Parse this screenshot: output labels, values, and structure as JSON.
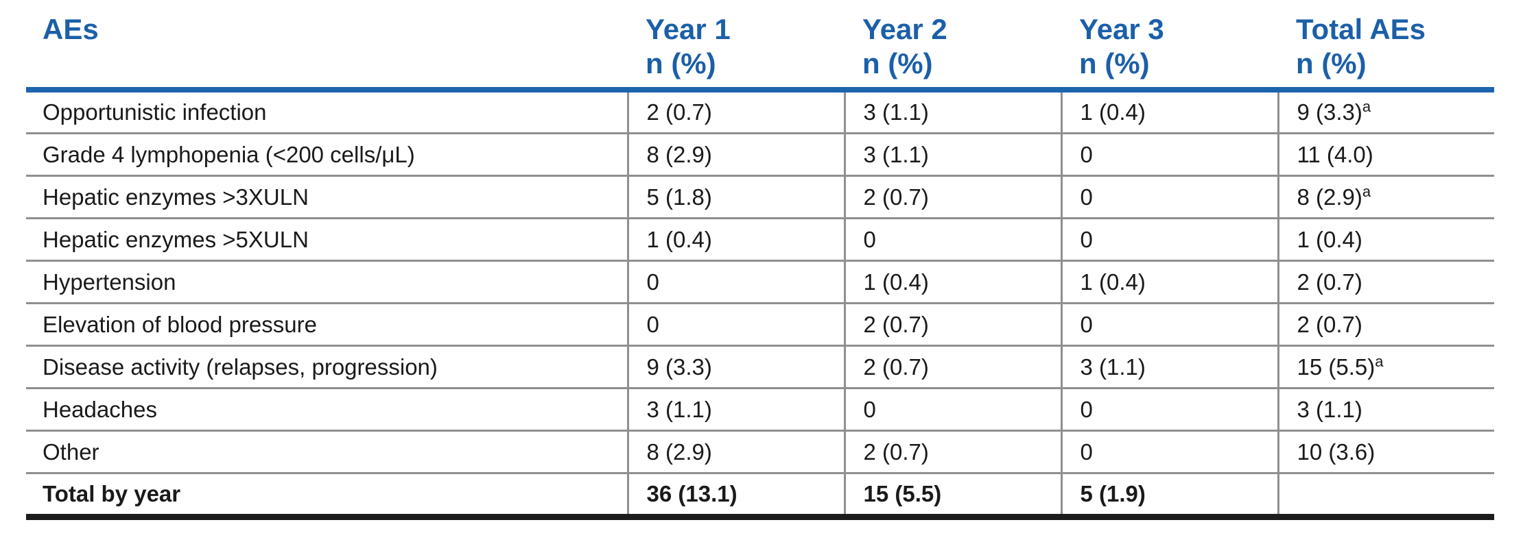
{
  "colors": {
    "accent_blue": "#1B5FA8",
    "rule_blue": "#1C64AE",
    "border_gray": "#8F8F8F",
    "bottom_black": "#1C1C1C",
    "text_color": "#1A1A1A",
    "page_bg": "#FFFFFF"
  },
  "table": {
    "columns": [
      {
        "label": "AEs",
        "sub": ""
      },
      {
        "label": "Year 1",
        "sub": "n (%)"
      },
      {
        "label": "Year 2",
        "sub": "n (%)"
      },
      {
        "label": "Year 3",
        "sub": "n (%)"
      },
      {
        "label": "Total AEs",
        "sub": "n (%)"
      }
    ],
    "rows": [
      {
        "label": "Opportunistic infection",
        "year1": "2 (0.7)",
        "year2": "3 (1.1)",
        "year3": "1 (0.4)",
        "total": "9 (3.3)",
        "total_sup": "a"
      },
      {
        "label": "Grade 4 lymphopenia (<200 cells/μL)",
        "year1": "8 (2.9)",
        "year2": "3 (1.1)",
        "year3": "0",
        "total": "11 (4.0)",
        "total_sup": ""
      },
      {
        "label": "Hepatic enzymes >3XULN",
        "year1": "5 (1.8)",
        "year2": "2 (0.7)",
        "year3": "0",
        "total": "8 (2.9)",
        "total_sup": "a"
      },
      {
        "label": "Hepatic enzymes >5XULN",
        "year1": "1 (0.4)",
        "year2": "0",
        "year3": "0",
        "total": "1 (0.4)",
        "total_sup": ""
      },
      {
        "label": "Hypertension",
        "year1": "0",
        "year2": "1 (0.4)",
        "year3": "1 (0.4)",
        "total": "2 (0.7)",
        "total_sup": ""
      },
      {
        "label": "Elevation of blood pressure",
        "year1": "0",
        "year2": "2 (0.7)",
        "year3": "0",
        "total": "2 (0.7)",
        "total_sup": ""
      },
      {
        "label": "Disease activity (relapses, progression)",
        "year1": "9 (3.3)",
        "year2": "2 (0.7)",
        "year3": "3 (1.1)",
        "total": "15 (5.5)",
        "total_sup": "a"
      },
      {
        "label": "Headaches",
        "year1": "3 (1.1)",
        "year2": "0",
        "year3": "0",
        "total": "3 (1.1)",
        "total_sup": ""
      },
      {
        "label": "Other",
        "year1": "8 (2.9)",
        "year2": "2 (0.7)",
        "year3": "0",
        "total": "10 (3.6)",
        "total_sup": ""
      }
    ],
    "footer": {
      "label": "Total by year",
      "year1": "36 (13.1)",
      "year2": "15 (5.5)",
      "year3": "5 (1.9)",
      "total": "",
      "total_sup": ""
    }
  }
}
